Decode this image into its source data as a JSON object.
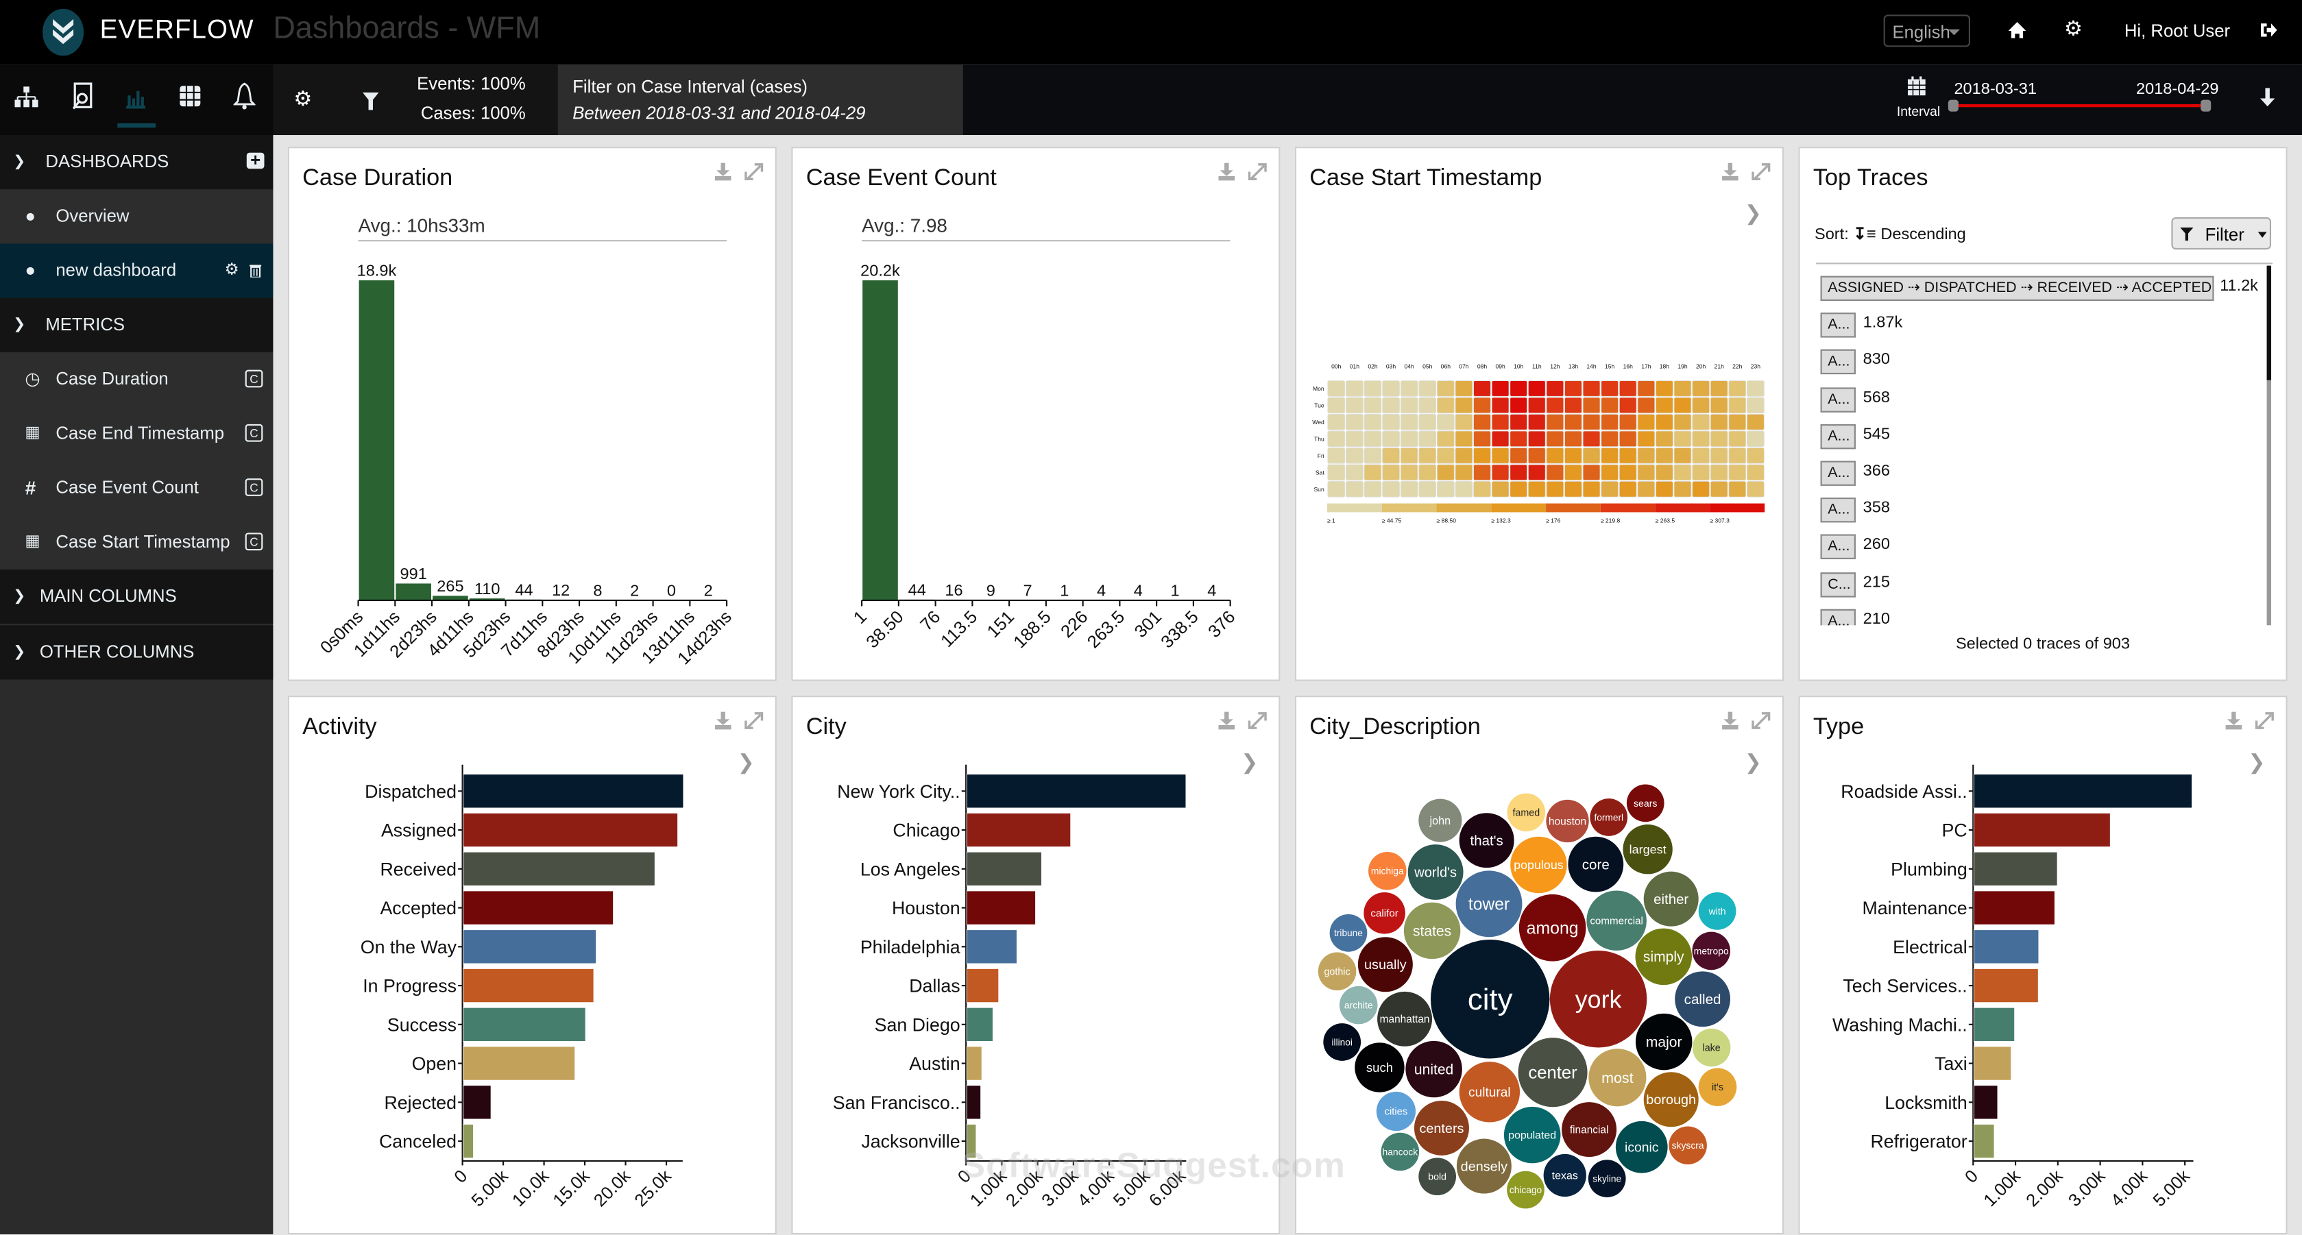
{
  "header": {
    "brand": "EVERFLOW",
    "title": "Dashboards - WFM",
    "language": "English",
    "greeting": "Hi, Root User"
  },
  "toolbar": {
    "events": "Events: 100%",
    "cases": "Cases: 100%",
    "filter_title": "Filter on Case Interval (cases)",
    "filter_desc": "Between 2018-03-31 and 2018-04-29",
    "interval_label": "Interval",
    "interval_start": "2018-03-31",
    "interval_end": "2018-04-29",
    "interval_color": "#e00000"
  },
  "sidebar": {
    "dashboards": "DASHBOARDS",
    "overview": "Overview",
    "new_dashboard": "new dashboard",
    "metrics": "METRICS",
    "metric_items": [
      "Case Duration",
      "Case End Timestamp",
      "Case Event Count",
      "Case Start Timestamp"
    ],
    "metric_badge": "C",
    "main_columns": "MAIN COLUMNS",
    "other_columns": "OTHER COLUMNS"
  },
  "panels": {
    "case_duration": "Case Duration",
    "case_event_count": "Case Event Count",
    "case_start_timestamp": "Case Start Timestamp",
    "top_traces": "Top Traces",
    "activity": "Activity",
    "city": "City",
    "city_description": "City_Description",
    "type": "Type"
  },
  "top_traces": {
    "sort_label": "Sort:",
    "sort_value": "Descending",
    "filter_label": "Filter",
    "traces": [
      {
        "label": "ASSIGNED ⇢ DISPATCHED ⇢ RECEIVED ⇢ ACCEPTED ...",
        "count": "11.2k"
      },
      {
        "label": "A...",
        "count": "1.87k"
      },
      {
        "label": "A...",
        "count": "830"
      },
      {
        "label": "A...",
        "count": "568"
      },
      {
        "label": "A...",
        "count": "545"
      },
      {
        "label": "A...",
        "count": "366"
      },
      {
        "label": "A...",
        "count": "358"
      },
      {
        "label": "A...",
        "count": "260"
      },
      {
        "label": "C...",
        "count": "215"
      },
      {
        "label": "A...",
        "count": "210"
      }
    ],
    "footer": "Selected 0 traces of 903"
  },
  "watermark": "SoftwareSuggest.com",
  "chart_data": [
    {
      "type": "bar",
      "title": "Case Duration",
      "subtitle": "Avg.: 10hs33m",
      "x_ticks": [
        "0s0ms",
        "1d11hs",
        "2d23hs",
        "4d11hs",
        "5d23hs",
        "7d11hs",
        "8d23hs",
        "10d11hs",
        "11d23hs",
        "13d11hs",
        "14d23hs"
      ],
      "values": [
        18900,
        991,
        265,
        110,
        44,
        12,
        8,
        2,
        0,
        2
      ],
      "value_labels": [
        "18.9k",
        "991",
        "265",
        "110",
        "44",
        "12",
        "8",
        "2",
        "0",
        "2"
      ],
      "color": "#2a6232"
    },
    {
      "type": "bar",
      "title": "Case Event Count",
      "subtitle": "Avg.: 7.98",
      "x_ticks": [
        "1",
        "38.50",
        "76",
        "113.5",
        "151",
        "188.5",
        "226",
        "263.5",
        "301",
        "338.5",
        "376"
      ],
      "values": [
        20200,
        44,
        16,
        9,
        7,
        1,
        4,
        4,
        1,
        4
      ],
      "value_labels": [
        "20.2k",
        "44",
        "16",
        "9",
        "7",
        "1",
        "4",
        "4",
        "1",
        "4"
      ],
      "color": "#2a6232"
    },
    {
      "type": "heatmap",
      "title": "Case Start Timestamp",
      "x": [
        "00h",
        "01h",
        "02h",
        "03h",
        "04h",
        "05h",
        "06h",
        "07h",
        "08h",
        "09h",
        "10h",
        "11h",
        "12h",
        "13h",
        "14h",
        "15h",
        "16h",
        "17h",
        "18h",
        "19h",
        "20h",
        "21h",
        "22h",
        "23h"
      ],
      "y": [
        "Mon",
        "Tue",
        "Wed",
        "Thu",
        "Fri",
        "Sat",
        "Sun"
      ],
      "legend": [
        "≥ 1",
        "≥ 44.75",
        "≥ 88.50",
        "≥ 132.3",
        "≥ 176",
        "≥ 219.8",
        "≥ 263.5",
        "≥ 307.3"
      ],
      "colors": [
        "#e0d8ac",
        "#e2c372",
        "#e0ab42",
        "#e49a22",
        "#de621a",
        "#e03a14",
        "#dc2010",
        "#dc0c08"
      ],
      "legend_bin": [
        [
          0,
          0,
          0,
          0,
          0,
          0,
          1,
          2,
          6,
          7,
          7,
          7,
          6,
          5,
          5,
          5,
          5,
          4,
          3,
          2,
          2,
          2,
          1,
          0
        ],
        [
          0,
          0,
          0,
          0,
          0,
          0,
          1,
          2,
          4,
          6,
          7,
          6,
          5,
          5,
          4,
          4,
          5,
          4,
          3,
          3,
          2,
          2,
          1,
          0
        ],
        [
          0,
          0,
          0,
          0,
          0,
          0,
          0,
          1,
          4,
          5,
          6,
          6,
          4,
          4,
          4,
          4,
          4,
          3,
          3,
          2,
          1,
          2,
          2,
          2
        ],
        [
          0,
          0,
          0,
          0,
          0,
          0,
          1,
          2,
          4,
          6,
          5,
          6,
          4,
          4,
          5,
          4,
          4,
          3,
          2,
          1,
          1,
          1,
          1,
          0
        ],
        [
          0,
          0,
          0,
          1,
          1,
          1,
          1,
          2,
          3,
          3,
          4,
          4,
          3,
          3,
          2,
          3,
          3,
          2,
          2,
          2,
          1,
          1,
          1,
          1
        ],
        [
          0,
          0,
          1,
          1,
          1,
          1,
          2,
          2,
          4,
          5,
          6,
          6,
          4,
          3,
          4,
          3,
          3,
          2,
          2,
          1,
          1,
          1,
          1,
          1
        ],
        [
          0,
          0,
          0,
          0,
          0,
          0,
          0,
          0,
          1,
          2,
          3,
          3,
          3,
          3,
          3,
          2,
          3,
          2,
          3,
          2,
          3,
          2,
          2,
          1
        ]
      ]
    },
    {
      "type": "bar",
      "orientation": "horizontal",
      "title": "Activity",
      "categories": [
        "Dispatched",
        "Assigned",
        "Received",
        "Accepted",
        "On the Way",
        "In Progress",
        "Success",
        "Open",
        "Rejected",
        "Canceled"
      ],
      "values": [
        27000,
        26300,
        23500,
        18400,
        16300,
        16000,
        15000,
        13700,
        3400,
        1250
      ],
      "x_ticks": [
        "0",
        "5.00k",
        "10.0k",
        "15.0k",
        "20.0k",
        "25.0k"
      ],
      "x_tick_values": [
        0,
        5000,
        10000,
        15000,
        20000,
        25000
      ],
      "xlim": [
        0,
        27000
      ],
      "colors": [
        "#061a2e",
        "#8e1e14",
        "#4a5044",
        "#720808",
        "#456e9a",
        "#c25822",
        "#467e6e",
        "#c2a25a",
        "#28060f",
        "#8e9a5a"
      ]
    },
    {
      "type": "bar",
      "orientation": "horizontal",
      "title": "City",
      "categories": [
        "New York City..",
        "Chicago",
        "Los Angeles",
        "Houston",
        "Philadelphia",
        "Dallas",
        "San Diego",
        "Austin",
        "San Francisco..",
        "Jacksonville"
      ],
      "values": [
        6120,
        2900,
        2090,
        1920,
        1400,
        890,
        730,
        420,
        390,
        260
      ],
      "x_ticks": [
        "0",
        "1.00k",
        "2.00k",
        "3.00k",
        "4.00k",
        "5.00k",
        "6.00k"
      ],
      "x_tick_values": [
        0,
        1000,
        2000,
        3000,
        4000,
        5000,
        6000
      ],
      "xlim": [
        0,
        6150
      ],
      "colors": [
        "#061a2e",
        "#8e1e14",
        "#4a5044",
        "#720808",
        "#456e9a",
        "#c25822",
        "#467e6e",
        "#c2a25a",
        "#28060f",
        "#8e9a5a"
      ]
    },
    {
      "type": "bubble",
      "title": "City_Description",
      "words": [
        "john",
        "that's",
        "famed",
        "houston",
        "formerl",
        "sears",
        "largest",
        "populous",
        "core",
        "michiga",
        "world's",
        "tower",
        "either",
        "with",
        "califor",
        "commercial",
        "among",
        "tribune",
        "states",
        "simply",
        "metropo",
        "usually",
        "gothic",
        "city",
        "york",
        "called",
        "archite",
        "manhattan",
        "illinoi",
        "major",
        "lake",
        "such",
        "united",
        "center",
        "most",
        "cultural",
        "it's",
        "borough",
        "cities",
        "centers",
        "populated",
        "financial",
        "iconic",
        "skyscra",
        "hancock",
        "densely",
        "bold",
        "texas",
        "skyline",
        "chicago"
      ],
      "colors": [
        "#848a7a",
        "#1a0510",
        "#fbd67a",
        "#b04a3a",
        "#8e1e14",
        "#780a0a",
        "#4a5010",
        "#f7981a",
        "#051020",
        "#f88038",
        "#2e5852",
        "#456e9a",
        "#5e6a42",
        "#1ab5c0",
        "#c01414",
        "#487e6e",
        "#780808",
        "#4672a0",
        "#8e9858",
        "#707a10",
        "#4e0e28",
        "#4c0606",
        "#c2a45e",
        "#05182a",
        "#921c14",
        "#2e4a6a",
        "#8eb5b0",
        "#32342e",
        "#020c1c",
        "#020508",
        "#cad680",
        "#020204",
        "#2a0814",
        "#4a5044",
        "#c2a25a",
        "#c25822",
        "#e6a636",
        "#a06210",
        "#5ea0d8",
        "#8a3e1c",
        "#06686a",
        "#62140e",
        "#024c50",
        "#c45a22",
        "#437e6e",
        "#7e6a3e",
        "#434c42",
        "#082440",
        "#051428",
        "#8e9a22"
      ]
    },
    {
      "type": "bar",
      "orientation": "horizontal",
      "title": "Type",
      "categories": [
        "Roadside Assi..",
        "PC",
        "Plumbing",
        "Maintenance",
        "Electrical",
        "Tech Services..",
        "Washing Machi..",
        "Taxi",
        "Locksmith",
        "Refrigerator"
      ],
      "values": [
        5150,
        3220,
        1970,
        1910,
        1530,
        1520,
        960,
        880,
        560,
        480
      ],
      "x_ticks": [
        "0",
        "1.00k",
        "2.00k",
        "3.00k",
        "4.00k",
        "5.00k"
      ],
      "x_tick_values": [
        0,
        1000,
        2000,
        3000,
        4000,
        5000
      ],
      "xlim": [
        0,
        5200
      ],
      "colors": [
        "#061a2e",
        "#8e1e14",
        "#4a5044",
        "#720808",
        "#456e9a",
        "#c25822",
        "#467e6e",
        "#c2a25a",
        "#28060f",
        "#8e9a5a"
      ]
    }
  ]
}
